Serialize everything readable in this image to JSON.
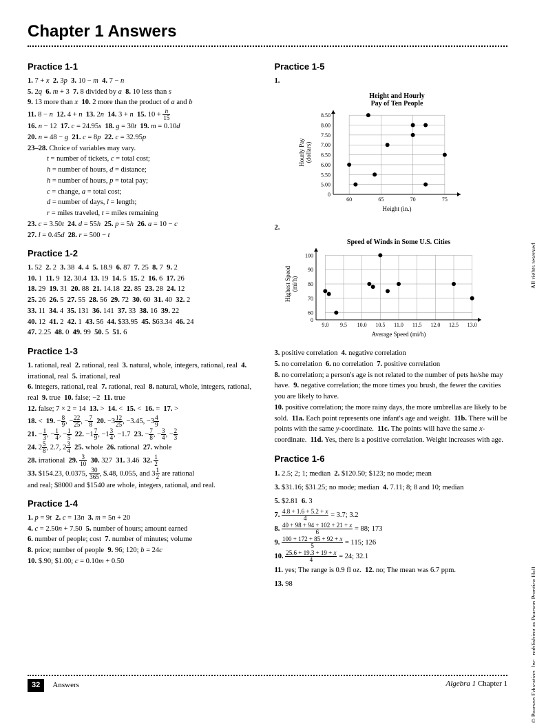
{
  "title": "Chapter 1 Answers",
  "copyright_top": "All rights reserved.",
  "copyright_bottom": "© Pearson Education, Inc., publishing as Pearson Prentice Hall.",
  "footer": {
    "page": "32",
    "left": "Answers",
    "right_italic": "Algebra 1",
    "right_plain": " Chapter 1"
  },
  "sections": {
    "p11": {
      "heading": "Practice 1-1",
      "body_html": "<b>1.</b> 7 + <i>x</i>&nbsp;&nbsp;<b>2.</b> 3<i>p</i>&nbsp;&nbsp;<b>3.</b> 10 − <i>m</i>&nbsp;&nbsp;<b>4.</b> 7 − <i>n</i><br><b>5.</b> 2<i>q</i>&nbsp;&nbsp;<b>6.</b> <i>m</i> + 3&nbsp;&nbsp;<b>7.</b> 8 divided by <i>a</i>&nbsp;&nbsp;<b>8.</b> 10 less than <i>s</i><br><b>9.</b> 13 more than <i>x</i>&nbsp;&nbsp;<b>10.</b> 2 more than the product of <i>a</i> and <i>b</i><br><b>11.</b> 8 − <i>n</i>&nbsp;&nbsp;<b>12.</b> 4 + <i>n</i>&nbsp;&nbsp;<b>13.</b> 2<i>n</i>&nbsp;&nbsp;<b>14.</b> 3 + <i>n</i>&nbsp;&nbsp;<b>15.</b> 10 + <span class='frac'><span class='n'><i>n</i></span><span class='d'>15</span></span><br><b>16.</b> <i>n</i> − 12&nbsp;&nbsp;<b>17.</b> <i>c</i> = 24.95<i>s</i>&nbsp;&nbsp;<b>18.</b> <i>g</i> = 30<i>t</i>&nbsp;&nbsp;<b>19.</b> <i>m</i> = 0.10<i>d</i><br><b>20.</b> <i>n</i> = 48 − <i>g</i>&nbsp;&nbsp;<b>21.</b> <i>c</i> = 8<i>p</i>&nbsp;&nbsp;<b>22.</b> <i>c</i> = 32.95<i>p</i><br><b>23–28.</b> Choice of variables may vary.<br><span class='indent'><i>t</i> = number of tickets, <i>c</i> = total cost;</span><br><span class='indent'><i>h</i> = number of hours, <i>d</i> = distance;</span><br><span class='indent'><i>h</i> = number of hours, <i>p</i> = total pay;</span><br><span class='indent'><i>c</i> = change, <i>a</i> = total cost;</span><br><span class='indent'><i>d</i> = number of days, <i>l</i> = length;</span><br><span class='indent'><i>r</i> = miles traveled, <i>t</i> = miles remaining</span><br><b>23.</b> <i>c</i> = 3.50<i>t</i>&nbsp;&nbsp;<b>24.</b> <i>d</i> = 55<i>h</i>&nbsp;&nbsp;<b>25.</b> <i>p</i> = 5<i>h</i>&nbsp;&nbsp;<b>26.</b> <i>a</i> = 10 − <i>c</i><br><b>27.</b> <i>l</i> = 0.45<i>d</i>&nbsp;&nbsp;<b>28.</b> <i>r</i> = 500 − <i>t</i>"
    },
    "p12": {
      "heading": "Practice 1-2",
      "body_html": "<b>1.</b> 52&nbsp;&nbsp;<b>2.</b> 2&nbsp;&nbsp;<b>3.</b> 38&nbsp;&nbsp;<b>4.</b> 4&nbsp;&nbsp;<b>5.</b> 18.9&nbsp;&nbsp;<b>6.</b> 87&nbsp;&nbsp;<b>7.</b> 25&nbsp;&nbsp;<b>8.</b> 7&nbsp;&nbsp;<b>9.</b> 2<br><b>10.</b> 1&nbsp;&nbsp;<b>11.</b> 9&nbsp;&nbsp;<b>12.</b> 30.4&nbsp;&nbsp;<b>13.</b> 19&nbsp;&nbsp;<b>14.</b> 5&nbsp;&nbsp;<b>15.</b> 2&nbsp;&nbsp;<b>16.</b> 6&nbsp;&nbsp;<b>17.</b> 26<br><b>18.</b> 29&nbsp;&nbsp;<b>19.</b> 31&nbsp;&nbsp;<b>20.</b> 88&nbsp;&nbsp;<b>21.</b> 14.18&nbsp;&nbsp;<b>22.</b> 85&nbsp;&nbsp;<b>23.</b> 28&nbsp;&nbsp;<b>24.</b> 12<br><b>25.</b> 26&nbsp;&nbsp;<b>26.</b> 5&nbsp;&nbsp;<b>27.</b> 55&nbsp;&nbsp;<b>28.</b> 56&nbsp;&nbsp;<b>29.</b> 72&nbsp;&nbsp;<b>30.</b> 60&nbsp;&nbsp;<b>31.</b> 40&nbsp;&nbsp;<b>32.</b> 2<br><b>33.</b> 11&nbsp;&nbsp;<b>34.</b> 4&nbsp;&nbsp;<b>35.</b> 131&nbsp;&nbsp;<b>36.</b> 141&nbsp;&nbsp;<b>37.</b> 33&nbsp;&nbsp;<b>38.</b> 16&nbsp;&nbsp;<b>39.</b> 22<br><b>40.</b> 12&nbsp;&nbsp;<b>41.</b> 2&nbsp;&nbsp;<b>42.</b> 1&nbsp;&nbsp;<b>43.</b> 56&nbsp;&nbsp;<b>44.</b> $33.95&nbsp;&nbsp;<b>45.</b> $63.34&nbsp;&nbsp;<b>46.</b> 24<br><b>47.</b> 2.25&nbsp;&nbsp;<b>48.</b> 0&nbsp;&nbsp;<b>49.</b> 99&nbsp;&nbsp;<b>50.</b> 5&nbsp;&nbsp;<b>51.</b> 6"
    },
    "p13": {
      "heading": "Practice 1-3",
      "body_html": "<b>1.</b> rational, real&nbsp;&nbsp;<b>2.</b> rational, real&nbsp;&nbsp;<b>3.</b> natural, whole, integers, rational, real&nbsp;&nbsp;<b>4.</b> irrational, real&nbsp;&nbsp;<b>5.</b> irrational, real<br><b>6.</b> integers, rational, real&nbsp;&nbsp;<b>7.</b> rational, real&nbsp;&nbsp;<b>8.</b> natural, whole, integers, rational, real&nbsp;&nbsp;<b>9.</b> true&nbsp;&nbsp;<b>10.</b> false; −2&nbsp;&nbsp;<b>11.</b> true<br><b>12.</b> false; 7 × 2 = 14&nbsp;&nbsp;<b>13.</b> &gt;&nbsp;&nbsp;<b>14.</b> &lt;&nbsp;&nbsp;<b>15.</b> &lt;&nbsp;&nbsp;<b>16.</b> =&nbsp;&nbsp;<b>17.</b> &gt;<br><b>18.</b> &lt;&nbsp;&nbsp;<b>19.</b> −<span class='frac'><span class='n'>8</span><span class='d'>9</span></span>, −<span class='frac'><span class='n'>22</span><span class='d'>25</span></span>, −<span class='frac'><span class='n'>7</span><span class='d'>8</span></span>&nbsp;&nbsp;<b>20.</b> −3<span class='frac'><span class='n'>12</span><span class='d'>25</span></span>, −3.45, −3<span class='frac'><span class='n'>4</span><span class='d'>9</span></span><br><b>21.</b> −<span class='frac'><span class='n'>1</span><span class='d'>3</span></span>, −<span class='frac'><span class='n'>1</span><span class='d'>4</span></span>, −<span class='frac'><span class='n'>1</span><span class='d'>5</span></span>&nbsp;&nbsp;<b>22.</b> −1<span class='frac'><span class='n'>7</span><span class='d'>9</span></span>, −1<span class='frac'><span class='n'>3</span><span class='d'>4</span></span>, −1.7&nbsp;&nbsp;<b>23.</b> −<span class='frac'><span class='n'>7</span><span class='d'>8</span></span>, −<span class='frac'><span class='n'>3</span><span class='d'>4</span></span>, −<span class='frac'><span class='n'>2</span><span class='d'>3</span></span><br><b>24.</b> 2<span class='frac'><span class='n'>5</span><span class='d'>8</span></span>, 2.7, 2<span class='frac'><span class='n'>3</span><span class='d'>4</span></span>&nbsp;&nbsp;<b>25.</b> whole&nbsp;&nbsp;<b>26.</b> rational&nbsp;&nbsp;<b>27.</b> whole<br><b>28.</b> irrational&nbsp;&nbsp;<b>29.</b> <span class='frac'><span class='n'>3</span><span class='d'>10</span></span>&nbsp;&nbsp;<b>30.</b> 327&nbsp;&nbsp;<b>31.</b> 3.46&nbsp;&nbsp;<b>32.</b> <span class='frac'><span class='n'>1</span><span class='d'>2</span></span><br><b>33.</b> $154.23, 0.0375, <span class='frac'><span class='n'>30</span><span class='d'>365</span></span>, $.48, 0.055, and 3<span class='frac'><span class='n'>1</span><span class='d'>2</span></span> are rational<br>and real; $8000 and $1540 are whole, integers, rational, and real."
    },
    "p14": {
      "heading": "Practice 1-4",
      "body_html": "<b>1.</b> <i>p</i> = 9<i>t</i>&nbsp;&nbsp;<b>2.</b> <i>c</i> = 13<i>n</i>&nbsp;&nbsp;<b>3.</b> <i>m</i> = 5<i>n</i> + 20<br><b>4.</b> <i>c</i> = 2.50<i>n</i> + 7.50&nbsp;&nbsp;<b>5.</b> number of hours; amount earned<br><b>6.</b> number of people; cost&nbsp;&nbsp;<b>7.</b> number of minutes; volume<br><b>8.</b> price; number of people&nbsp;&nbsp;<b>9.</b> 96; 120; <i>b</i> = 24<i>c</i><br><b>10.</b> $.90; $1.00; <i>c</i> = 0.10<i>m</i> + 0.50"
    },
    "p15": {
      "heading": "Practice 1-5",
      "q1_label": "1.",
      "chart1": {
        "title": "Height and Hourly\nPay of Ten People",
        "xlabel": "Height (in.)",
        "ylabel": "Hourly Pay\n(dollars)",
        "xticks": [
          "60",
          "65",
          "70",
          "75"
        ],
        "yticks": [
          "5.00",
          "5.50",
          "6.00",
          "6.50",
          "7.00",
          "7.50",
          "8.00",
          "8.50"
        ],
        "xlim": [
          57.5,
          77.5
        ],
        "ylim": [
          4.5,
          8.75
        ],
        "points": [
          [
            60,
            6.0
          ],
          [
            61,
            5.0
          ],
          [
            63,
            8.5
          ],
          [
            64,
            5.5
          ],
          [
            66,
            7.0
          ],
          [
            70,
            7.5
          ],
          [
            70,
            8.0
          ],
          [
            72,
            5.0
          ],
          [
            72,
            8.0
          ],
          [
            75,
            6.5
          ]
        ],
        "grid_color": "#999999",
        "point_color": "#000000",
        "point_r": 3
      },
      "q2_label": "2.",
      "chart2": {
        "title": "Speed of Winds in Some U.S. Cities",
        "xlabel": "Average Speed (mi/h)",
        "ylabel": "Highest Speed\n(mi/h)",
        "xticks": [
          "9.0",
          "9.5",
          "10.0",
          "10.5",
          "11.0",
          "11.5",
          "12.0",
          "12.5",
          "13.0"
        ],
        "yticks": [
          "60",
          "70",
          "80",
          "90",
          "100"
        ],
        "xlim": [
          8.75,
          13.25
        ],
        "ylim": [
          55,
          105
        ],
        "points": [
          [
            9.0,
            75
          ],
          [
            9.1,
            73
          ],
          [
            9.3,
            60
          ],
          [
            10.2,
            80
          ],
          [
            10.3,
            78
          ],
          [
            10.5,
            100
          ],
          [
            10.7,
            75
          ],
          [
            11.0,
            80
          ],
          [
            12.5,
            80
          ],
          [
            13.0,
            70
          ]
        ],
        "grid_color": "#999999",
        "point_color": "#000000",
        "point_r": 3
      },
      "body_html": "<b>3.</b> positive correlation&nbsp;&nbsp;<b>4.</b> negative correlation<br><b>5.</b> no correlation&nbsp;&nbsp;<b>6.</b> no correlation&nbsp;&nbsp;<b>7.</b> positive correlation<br><b>8.</b> no correlation; a person's age is not related to the number of pets he/she may have.&nbsp;&nbsp;<b>9.</b> negative correlation; the more times you brush, the fewer the cavities you are likely to have.<br><b>10.</b> positive correlation; the more rainy days, the more umbrellas are likely to be sold.&nbsp;&nbsp;<b>11a.</b> Each point represents one infant's age and weight.&nbsp;&nbsp;<b>11b.</b> There will be points with the same <i>y</i>-coordinate.&nbsp;&nbsp;<b>11c.</b> The points will have the same <i>x</i>-coordinate.&nbsp;&nbsp;<b>11d.</b> Yes, there is a positive correlation. Weight increases with age."
    },
    "p16": {
      "heading": "Practice 1-6",
      "body_html": "<b>1.</b> 2.5; 2; 1; median&nbsp;&nbsp;<b>2.</b> $120.50; $123; no mode; mean<br><b>3.</b> $31.16; $31.25; no mode; median&nbsp;&nbsp;<b>4.</b> 7.11; 8; 8 and 10; median<br><b>5.</b> $2.81&nbsp;&nbsp;<b>6.</b> 3<br><b>7.</b> <span class='frac'><span class='n'>4.8 + 1.6 + 5.2 + <i>x</i></span><span class='d'>4</span></span> = 3.7; 3.2<br><b>8.</b> <span class='frac'><span class='n'>40 + 98 + 94 + 102 + 21 + <i>x</i></span><span class='d'>6</span></span> = 88; 173<br><b>9.</b> <span class='frac'><span class='n'>100 + 172 + 85 + 92 + <i>x</i></span><span class='d'>5</span></span> = 115; 126<br><b>10.</b> <span class='frac'><span class='n'>25.6 + 19.3 + 19 + <i>x</i></span><span class='d'>4</span></span> = 24; 32.1<br><b>11.</b> yes; The range is 0.9 fl oz.&nbsp;&nbsp;<b>12.</b> no; The mean was 6.7 ppm.<br><b>13.</b> 98"
    }
  }
}
